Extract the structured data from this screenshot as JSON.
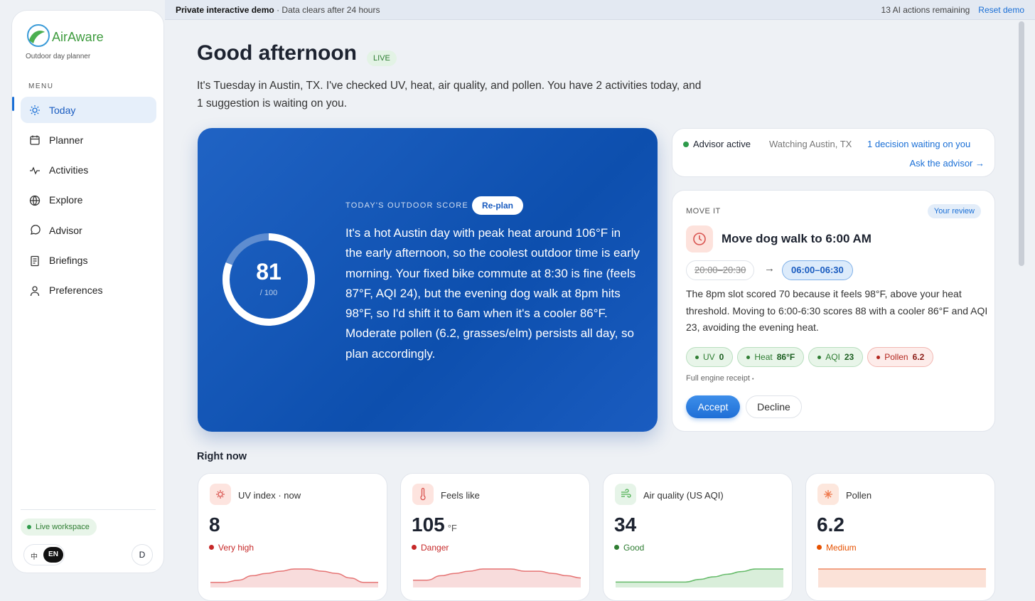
{
  "banner": {
    "title": "Private interactive demo",
    "subtitle": "· Data clears after 24 hours",
    "actions_remaining": "13 AI actions remaining",
    "reset": "Reset demo"
  },
  "sidebar": {
    "brand": "AirAware",
    "tagline": "Outdoor day planner",
    "menu_label": "MENU",
    "items": [
      "Today",
      "Planner",
      "Activities",
      "Explore",
      "Advisor",
      "Briefings",
      "Preferences"
    ],
    "workspace": "Live workspace",
    "languages": [
      "中",
      "EN"
    ],
    "avatar": "D"
  },
  "header": {
    "greeting": "Good afternoon",
    "badge": "LIVE",
    "intro": "It's Tuesday in Austin, TX. I've checked UV, heat, air quality, and pollen. You have 2 activities today, and 1 suggestion is waiting on you."
  },
  "score_card": {
    "label": "TODAY'S OUTDOOR SCORE",
    "button": "Re-plan",
    "score": 81,
    "max": {
      "value": 100,
      "label": "/ 100"
    },
    "summary": "It's a hot Austin day with peak heat around 106°F in the early afternoon, so the coolest outdoor time is early morning. Your fixed bike commute at 8:30 is fine (feels 87°F, AQI 24), but the evening dog walk at 8pm hits 98°F, so I'd shift it to 6am when it's a cooler 86°F. Moderate pollen (6.2, grasses/elm) persists all day, so plan accordingly."
  },
  "advisor": {
    "status": "Advisor active",
    "watching": "Watching Austin, TX",
    "decision": "1 decision waiting on you",
    "ask": "Ask the advisor →"
  },
  "suggestion": {
    "kind": "MOVE IT",
    "review": "Your review",
    "title": "Move dog walk to 6:00 AM",
    "old_time": "20:00–20:30",
    "new_time": "06:00–06:30",
    "body": "The 8pm slot scored 70 because it feels 98°F, above your heat threshold. Moving to 6:00-6:30 scores 88 with a cooler 86°F and AQI 23, avoiding the evening heat.",
    "chips": [
      {
        "label": "UV",
        "value": "0",
        "tone": "good"
      },
      {
        "label": "Heat",
        "value": "86°F",
        "tone": "good"
      },
      {
        "label": "AQI",
        "value": "23",
        "tone": "good"
      },
      {
        "label": "Pollen",
        "value": "6.2",
        "tone": "bad"
      }
    ],
    "receipt": "Full engine receipt",
    "receipt_dot": "•",
    "accept": "Accept",
    "decline": "Decline"
  },
  "right_now": {
    "title": "Right now",
    "cards": [
      {
        "label": "UV index · now",
        "value": 8,
        "status": "Very high",
        "tone": "#c62828",
        "color": "#e57373",
        "trend": [
          1,
          1,
          2,
          4,
          5,
          6,
          7,
          7,
          6,
          5,
          3,
          1,
          1
        ]
      },
      {
        "label": "Feels like",
        "value": 105,
        "unit": "°F",
        "status": "Danger",
        "tone": "#c62828",
        "color": "#e57373",
        "trend": [
          2,
          2,
          4,
          5,
          6,
          7,
          7,
          7,
          6,
          6,
          5,
          4,
          3
        ]
      },
      {
        "label": "Air quality (US AQI)",
        "value": 34,
        "status": "Good",
        "tone": "#2e7d32",
        "color": "#66bb6a",
        "trend": [
          1,
          1,
          1,
          1,
          1,
          1,
          2,
          3,
          4,
          5,
          6,
          6,
          6
        ]
      },
      {
        "label": "Pollen",
        "value": 6.2,
        "status": "Medium",
        "tone": "#e65100",
        "color": "#ef8a65",
        "trend": [
          6,
          6,
          6,
          6,
          6,
          6,
          6,
          6,
          6,
          6,
          6,
          6,
          6
        ]
      }
    ]
  }
}
